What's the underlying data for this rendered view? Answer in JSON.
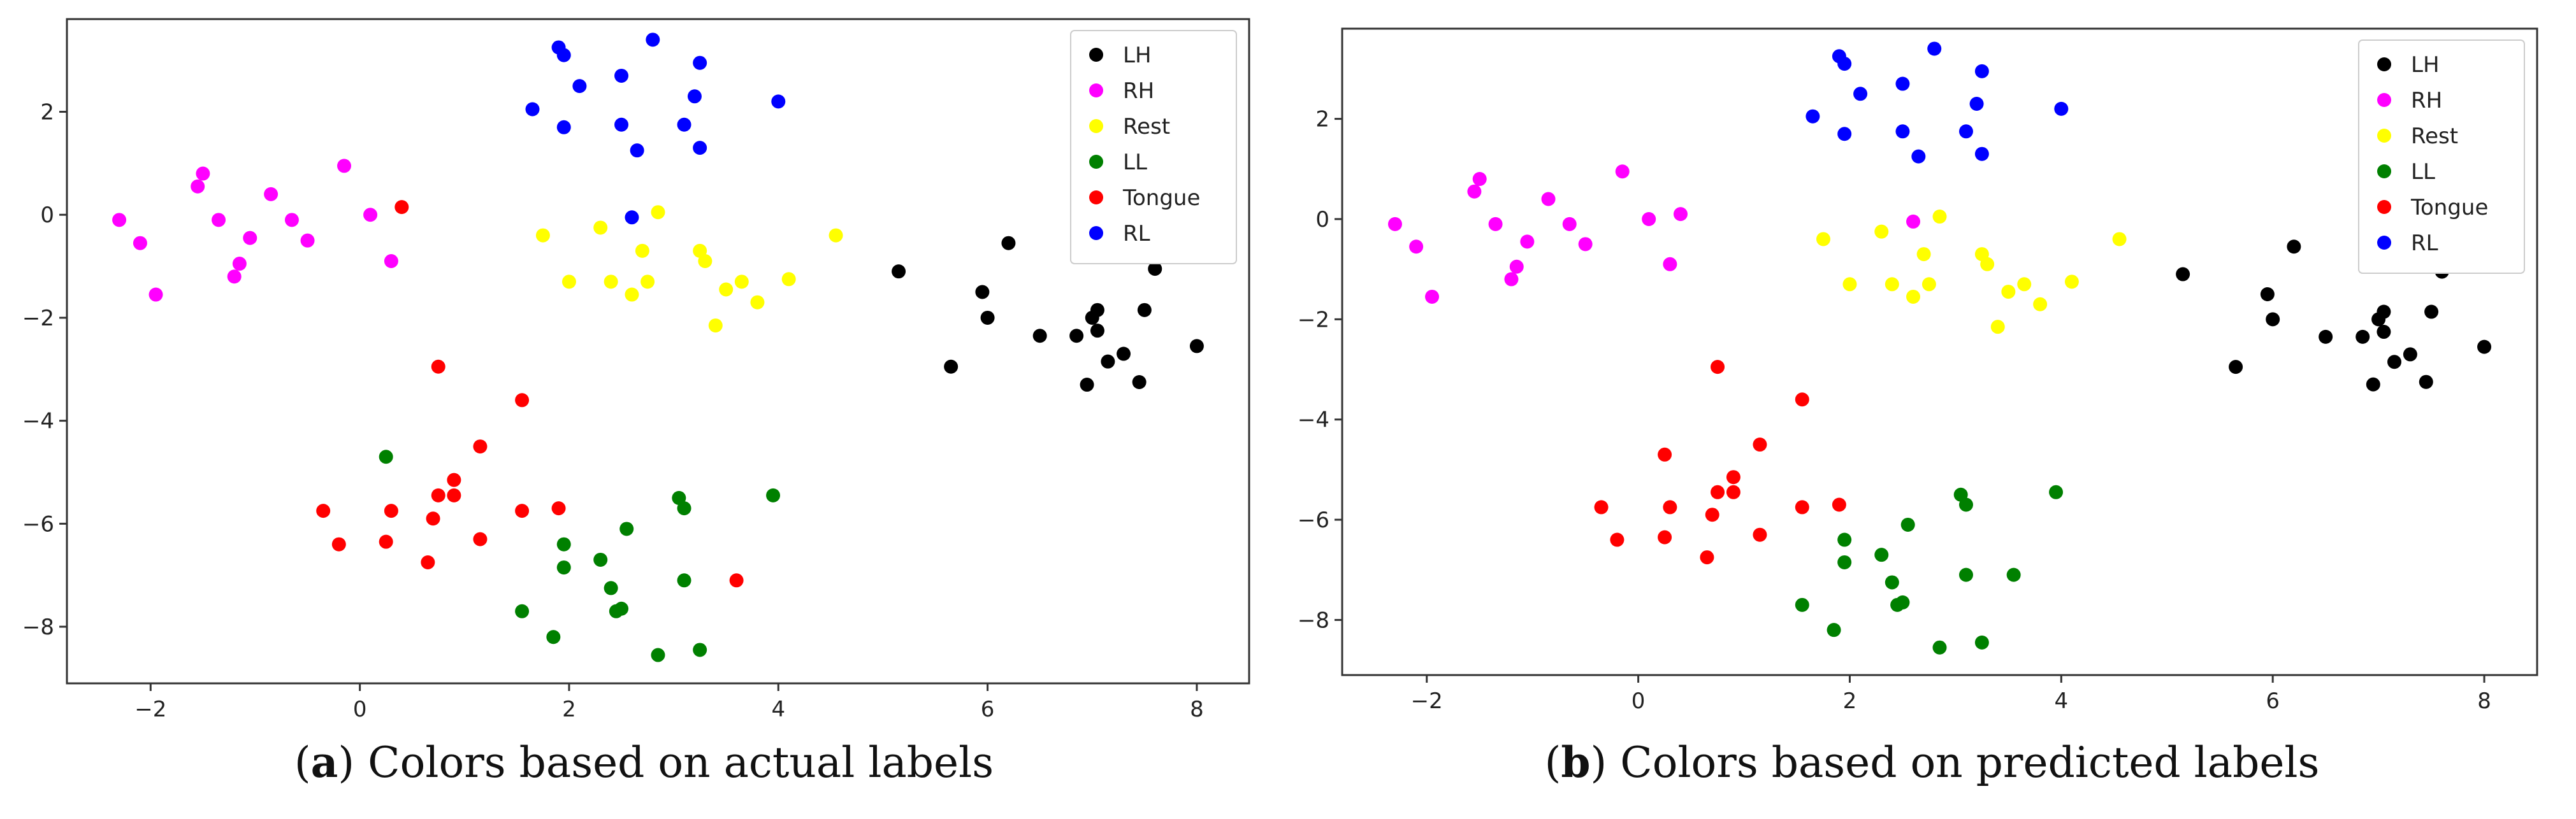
{
  "chart_data": [
    {
      "type": "scatter",
      "title": "",
      "xlabel": "",
      "ylabel": "",
      "xlim": [
        -2.8,
        8.5
      ],
      "ylim": [
        -9.1,
        3.8
      ],
      "xticks": [
        "−2",
        "0",
        "2",
        "4",
        "6",
        "8"
      ],
      "xtick_values": [
        -2,
        0,
        2,
        4,
        6,
        8
      ],
      "yticks": [
        "2",
        "0",
        "−2",
        "−4",
        "−6",
        "−8"
      ],
      "ytick_values": [
        2,
        0,
        -2,
        -4,
        -6,
        -8
      ],
      "legend_position": "top-right",
      "caption_label": "a",
      "caption_text": ") Colors based on actual labels",
      "caption_open": "(",
      "series": [
        {
          "name": "LH",
          "color": "#000000",
          "points": [
            [
              5.15,
              -1.1
            ],
            [
              5.65,
              -2.95
            ],
            [
              5.95,
              -1.5
            ],
            [
              6.0,
              -2.0
            ],
            [
              6.2,
              -0.55
            ],
            [
              6.5,
              -2.35
            ],
            [
              6.85,
              -2.35
            ],
            [
              6.95,
              -3.3
            ],
            [
              7.0,
              -2.0
            ],
            [
              7.05,
              -1.85
            ],
            [
              7.05,
              -2.25
            ],
            [
              7.15,
              -2.85
            ],
            [
              7.3,
              -2.7
            ],
            [
              7.45,
              -3.25
            ],
            [
              7.5,
              -1.85
            ],
            [
              7.6,
              -1.05
            ],
            [
              8.0,
              -2.55
            ]
          ]
        },
        {
          "name": "RH",
          "color": "#ff00ff",
          "points": [
            [
              -2.3,
              -0.1
            ],
            [
              -2.1,
              -0.55
            ],
            [
              -1.95,
              -1.55
            ],
            [
              -1.55,
              0.55
            ],
            [
              -1.5,
              0.8
            ],
            [
              -1.35,
              -0.1
            ],
            [
              -1.2,
              -1.2
            ],
            [
              -1.15,
              -0.95
            ],
            [
              -1.05,
              -0.45
            ],
            [
              -0.85,
              0.4
            ],
            [
              -0.65,
              -0.1
            ],
            [
              -0.5,
              -0.5
            ],
            [
              -0.15,
              0.95
            ],
            [
              0.1,
              0.0
            ],
            [
              0.3,
              -0.9
            ]
          ]
        },
        {
          "name": "Rest",
          "color": "#ffff00",
          "points": [
            [
              1.75,
              -0.4
            ],
            [
              2.0,
              -1.3
            ],
            [
              2.3,
              -0.25
            ],
            [
              2.4,
              -1.3
            ],
            [
              2.6,
              -1.55
            ],
            [
              2.7,
              -0.7
            ],
            [
              2.75,
              -1.3
            ],
            [
              2.85,
              0.05
            ],
            [
              3.25,
              -0.7
            ],
            [
              3.3,
              -0.9
            ],
            [
              3.4,
              -2.15
            ],
            [
              3.5,
              -1.45
            ],
            [
              3.65,
              -1.3
            ],
            [
              3.8,
              -1.7
            ],
            [
              4.1,
              -1.25
            ],
            [
              4.55,
              -0.4
            ]
          ]
        },
        {
          "name": "LL",
          "color": "#008000",
          "points": [
            [
              0.25,
              -4.7
            ],
            [
              1.55,
              -7.7
            ],
            [
              1.85,
              -8.2
            ],
            [
              1.95,
              -6.4
            ],
            [
              1.95,
              -6.85
            ],
            [
              2.3,
              -6.7
            ],
            [
              2.4,
              -7.25
            ],
            [
              2.45,
              -7.7
            ],
            [
              2.5,
              -7.65
            ],
            [
              2.55,
              -6.1
            ],
            [
              2.85,
              -8.55
            ],
            [
              3.05,
              -5.5
            ],
            [
              3.1,
              -5.7
            ],
            [
              3.1,
              -7.1
            ],
            [
              3.25,
              -8.45
            ],
            [
              3.95,
              -5.45
            ]
          ]
        },
        {
          "name": "Tongue",
          "color": "#ff0000",
          "points": [
            [
              -0.35,
              -5.75
            ],
            [
              -0.2,
              -6.4
            ],
            [
              0.4,
              0.15
            ],
            [
              0.3,
              -5.75
            ],
            [
              0.25,
              -6.35
            ],
            [
              0.65,
              -6.75
            ],
            [
              0.75,
              -2.95
            ],
            [
              0.75,
              -5.45
            ],
            [
              0.7,
              -5.9
            ],
            [
              0.9,
              -5.15
            ],
            [
              0.9,
              -5.45
            ],
            [
              1.15,
              -4.5
            ],
            [
              1.15,
              -6.3
            ],
            [
              1.55,
              -3.6
            ],
            [
              1.55,
              -5.75
            ],
            [
              1.9,
              -5.7
            ],
            [
              3.6,
              -7.1
            ]
          ]
        },
        {
          "name": "RL",
          "color": "#0000ff",
          "points": [
            [
              1.65,
              2.05
            ],
            [
              1.95,
              1.7
            ],
            [
              1.9,
              3.25
            ],
            [
              1.95,
              3.1
            ],
            [
              2.1,
              2.5
            ],
            [
              2.5,
              2.7
            ],
            [
              2.5,
              1.75
            ],
            [
              2.6,
              -0.05
            ],
            [
              2.65,
              1.25
            ],
            [
              2.8,
              3.4
            ],
            [
              3.1,
              1.75
            ],
            [
              3.25,
              1.3
            ],
            [
              3.2,
              2.3
            ],
            [
              3.25,
              2.95
            ],
            [
              4.0,
              2.2
            ]
          ]
        }
      ]
    },
    {
      "type": "scatter",
      "title": "",
      "xlabel": "",
      "ylabel": "",
      "xlim": [
        -2.8,
        8.5
      ],
      "ylim": [
        -9.1,
        3.8
      ],
      "xticks": [
        "−2",
        "0",
        "2",
        "4",
        "6",
        "8"
      ],
      "xtick_values": [
        -2,
        0,
        2,
        4,
        6,
        8
      ],
      "yticks": [
        "2",
        "0",
        "−2",
        "−4",
        "−6",
        "−8"
      ],
      "ytick_values": [
        2,
        0,
        -2,
        -4,
        -6,
        -8
      ],
      "legend_position": "top-right",
      "caption_label": "b",
      "caption_text": ") Colors based on predicted labels",
      "caption_open": "(",
      "series": [
        {
          "name": "LH",
          "color": "#000000",
          "points": [
            [
              5.15,
              -1.1
            ],
            [
              5.65,
              -2.95
            ],
            [
              5.95,
              -1.5
            ],
            [
              6.0,
              -2.0
            ],
            [
              6.2,
              -0.55
            ],
            [
              6.5,
              -2.35
            ],
            [
              6.85,
              -2.35
            ],
            [
              6.95,
              -3.3
            ],
            [
              7.0,
              -2.0
            ],
            [
              7.05,
              -1.85
            ],
            [
              7.05,
              -2.25
            ],
            [
              7.15,
              -2.85
            ],
            [
              7.3,
              -2.7
            ],
            [
              7.45,
              -3.25
            ],
            [
              7.5,
              -1.85
            ],
            [
              7.6,
              -1.05
            ],
            [
              8.0,
              -2.55
            ]
          ]
        },
        {
          "name": "RH",
          "color": "#ff00ff",
          "points": [
            [
              -2.3,
              -0.1
            ],
            [
              -2.1,
              -0.55
            ],
            [
              -1.95,
              -1.55
            ],
            [
              -1.55,
              0.55
            ],
            [
              -1.5,
              0.8
            ],
            [
              -1.35,
              -0.1
            ],
            [
              -1.2,
              -1.2
            ],
            [
              -1.15,
              -0.95
            ],
            [
              -1.05,
              -0.45
            ],
            [
              -0.85,
              0.4
            ],
            [
              -0.65,
              -0.1
            ],
            [
              -0.5,
              -0.5
            ],
            [
              -0.15,
              0.95
            ],
            [
              0.1,
              0.0
            ],
            [
              0.3,
              -0.9
            ],
            [
              0.4,
              0.1
            ],
            [
              2.6,
              -0.05
            ]
          ]
        },
        {
          "name": "Rest",
          "color": "#ffff00",
          "points": [
            [
              1.75,
              -0.4
            ],
            [
              2.0,
              -1.3
            ],
            [
              2.3,
              -0.25
            ],
            [
              2.4,
              -1.3
            ],
            [
              2.6,
              -1.55
            ],
            [
              2.7,
              -0.7
            ],
            [
              2.75,
              -1.3
            ],
            [
              2.85,
              0.05
            ],
            [
              3.25,
              -0.7
            ],
            [
              3.3,
              -0.9
            ],
            [
              3.4,
              -2.15
            ],
            [
              3.5,
              -1.45
            ],
            [
              3.65,
              -1.3
            ],
            [
              3.8,
              -1.7
            ],
            [
              4.1,
              -1.25
            ],
            [
              4.55,
              -0.4
            ]
          ]
        },
        {
          "name": "LL",
          "color": "#008000",
          "points": [
            [
              1.55,
              -7.7
            ],
            [
              1.85,
              -8.2
            ],
            [
              1.95,
              -6.4
            ],
            [
              1.95,
              -6.85
            ],
            [
              2.3,
              -6.7
            ],
            [
              2.4,
              -7.25
            ],
            [
              2.45,
              -7.7
            ],
            [
              2.5,
              -7.65
            ],
            [
              2.55,
              -6.1
            ],
            [
              2.85,
              -8.55
            ],
            [
              3.05,
              -5.5
            ],
            [
              3.1,
              -5.7
            ],
            [
              3.1,
              -7.1
            ],
            [
              3.25,
              -8.45
            ],
            [
              3.55,
              -7.1
            ],
            [
              3.95,
              -5.45
            ]
          ]
        },
        {
          "name": "Tongue",
          "color": "#ff0000",
          "points": [
            [
              -0.35,
              -5.75
            ],
            [
              -0.2,
              -6.4
            ],
            [
              0.25,
              -4.7
            ],
            [
              0.3,
              -5.75
            ],
            [
              0.25,
              -6.35
            ],
            [
              0.65,
              -6.75
            ],
            [
              0.75,
              -2.95
            ],
            [
              0.75,
              -5.45
            ],
            [
              0.7,
              -5.9
            ],
            [
              0.9,
              -5.15
            ],
            [
              0.9,
              -5.45
            ],
            [
              1.15,
              -4.5
            ],
            [
              1.15,
              -6.3
            ],
            [
              1.55,
              -3.6
            ],
            [
              1.55,
              -5.75
            ],
            [
              1.9,
              -5.7
            ]
          ]
        },
        {
          "name": "RL",
          "color": "#0000ff",
          "points": [
            [
              1.65,
              2.05
            ],
            [
              1.95,
              1.7
            ],
            [
              1.9,
              3.25
            ],
            [
              1.95,
              3.1
            ],
            [
              2.1,
              2.5
            ],
            [
              2.5,
              2.7
            ],
            [
              2.5,
              1.75
            ],
            [
              2.65,
              1.25
            ],
            [
              2.8,
              3.4
            ],
            [
              3.1,
              1.75
            ],
            [
              3.25,
              1.3
            ],
            [
              3.2,
              2.3
            ],
            [
              3.25,
              2.95
            ],
            [
              4.0,
              2.2
            ]
          ]
        }
      ]
    }
  ]
}
